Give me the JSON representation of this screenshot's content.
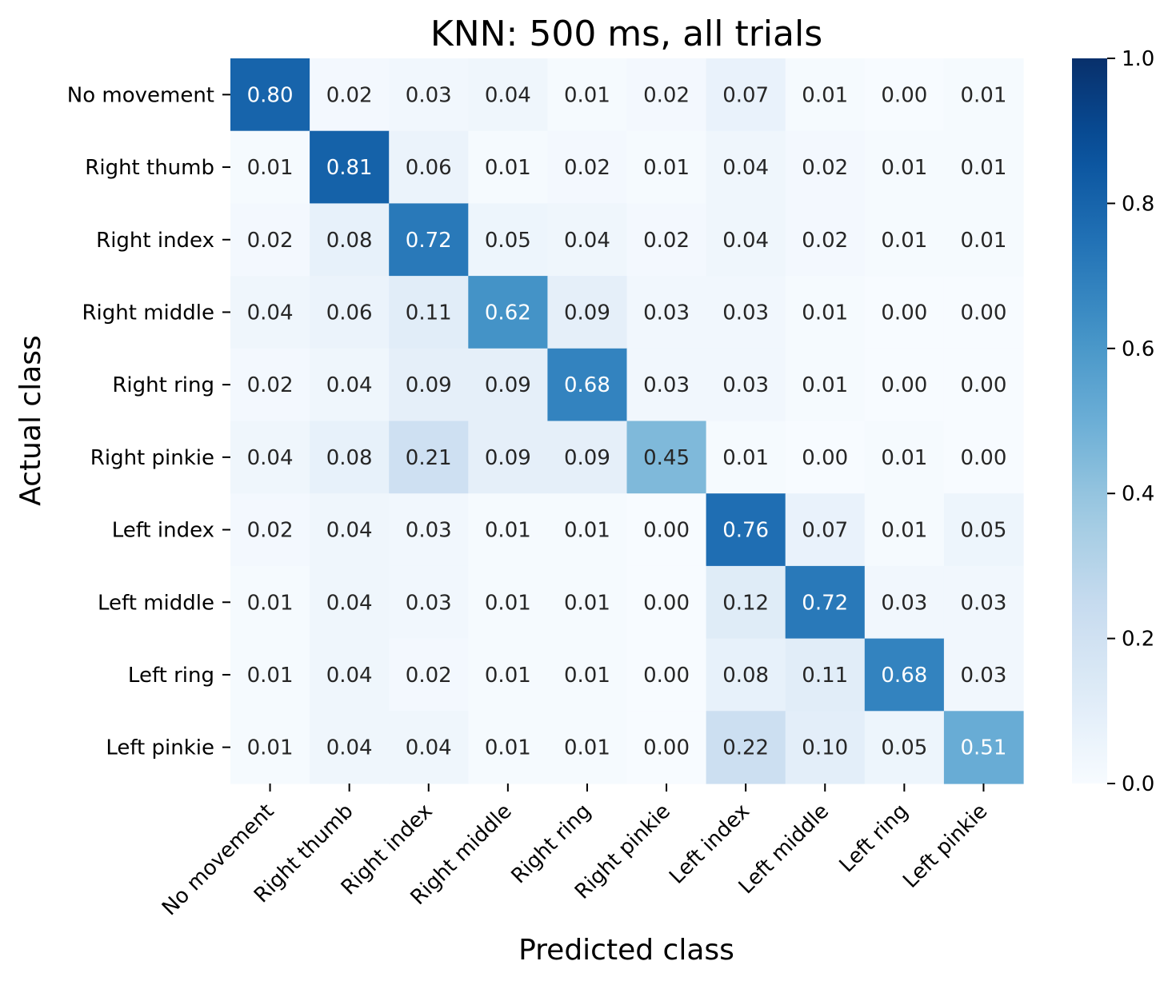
{
  "chart_data": {
    "type": "heatmap",
    "title": "KNN: 500 ms, all trials",
    "xlabel": "Predicted class",
    "ylabel": "Actual class",
    "x_categories": [
      "No movement",
      "Right thumb",
      "Right index",
      "Right middle",
      "Right ring",
      "Right pinkie",
      "Left index",
      "Left middle",
      "Left ring",
      "Left pinkie"
    ],
    "y_categories": [
      "No movement",
      "Right thumb",
      "Right index",
      "Right middle",
      "Right ring",
      "Right pinkie",
      "Left index",
      "Left middle",
      "Left ring",
      "Left pinkie"
    ],
    "values": [
      [
        0.8,
        0.02,
        0.03,
        0.04,
        0.01,
        0.02,
        0.07,
        0.01,
        0.0,
        0.01
      ],
      [
        0.01,
        0.81,
        0.06,
        0.01,
        0.02,
        0.01,
        0.04,
        0.02,
        0.01,
        0.01
      ],
      [
        0.02,
        0.08,
        0.72,
        0.05,
        0.04,
        0.02,
        0.04,
        0.02,
        0.01,
        0.01
      ],
      [
        0.04,
        0.06,
        0.11,
        0.62,
        0.09,
        0.03,
        0.03,
        0.01,
        0.0,
        0.0
      ],
      [
        0.02,
        0.04,
        0.09,
        0.09,
        0.68,
        0.03,
        0.03,
        0.01,
        0.0,
        0.0
      ],
      [
        0.04,
        0.08,
        0.21,
        0.09,
        0.09,
        0.45,
        0.01,
        0.0,
        0.01,
        0.0
      ],
      [
        0.02,
        0.04,
        0.03,
        0.01,
        0.01,
        0.0,
        0.76,
        0.07,
        0.01,
        0.05
      ],
      [
        0.01,
        0.04,
        0.03,
        0.01,
        0.01,
        0.0,
        0.12,
        0.72,
        0.03,
        0.03
      ],
      [
        0.01,
        0.04,
        0.02,
        0.01,
        0.01,
        0.0,
        0.08,
        0.11,
        0.68,
        0.03
      ],
      [
        0.01,
        0.04,
        0.04,
        0.01,
        0.01,
        0.0,
        0.22,
        0.1,
        0.05,
        0.51
      ]
    ],
    "value_format": "0.00",
    "colormap": "Blues",
    "vmin": 0.0,
    "vmax": 1.0,
    "colorbar_ticks": [
      0.0,
      0.2,
      0.4,
      0.6,
      0.8,
      1.0
    ],
    "colorbar_tick_labels": [
      "0.0",
      "0.2",
      "0.4",
      "0.6",
      "0.8",
      "1.0"
    ],
    "grid": false,
    "colors": {
      "text_dark": "#262626",
      "text_light": "#ffffff",
      "axis": "#000000"
    }
  }
}
